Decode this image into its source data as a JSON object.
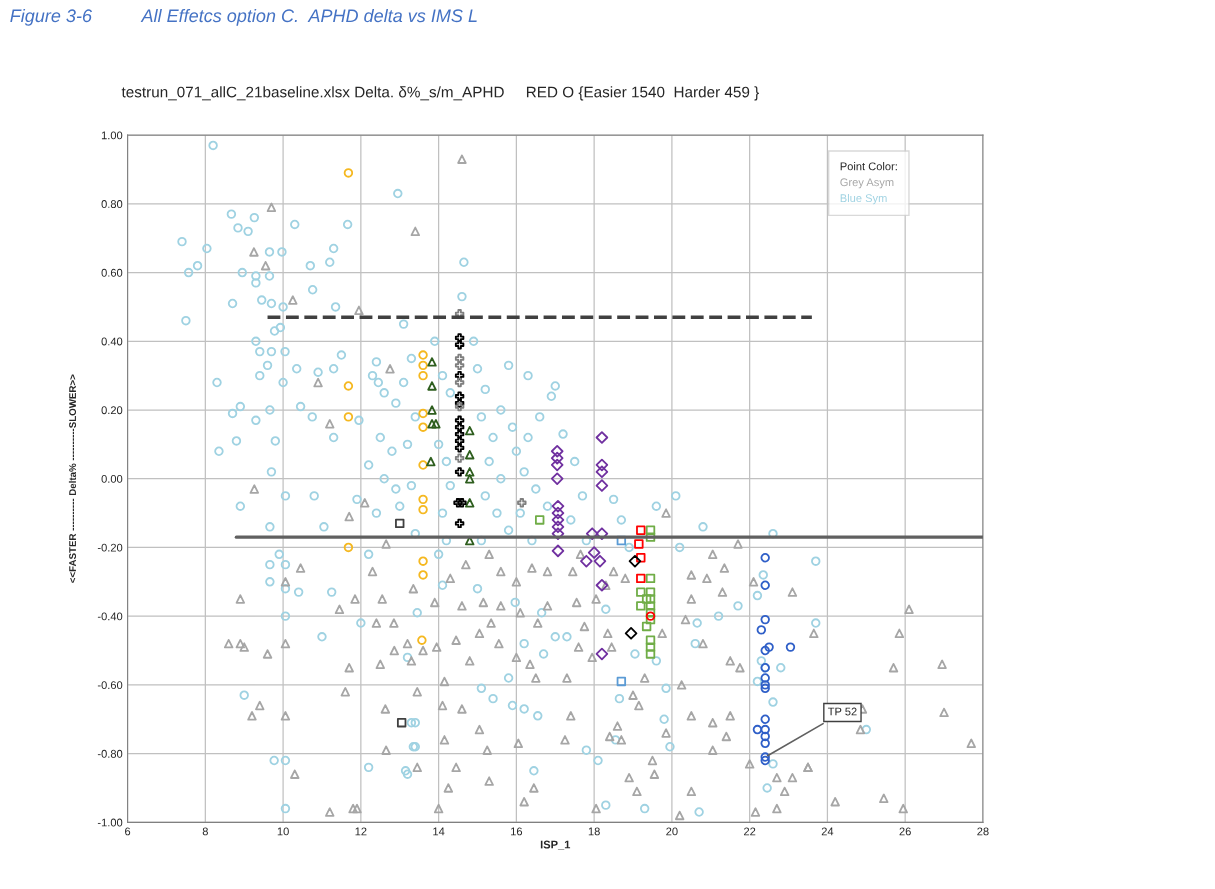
{
  "chart_data": {
    "type": "scatter",
    "title": "Figure 3-6          All Effetcs option C.  APHD delta vs IMS L",
    "subtitle": "testrun_071_allC_21baseline.xlsx Delta. δ%_s/m_APHD     RED O {Easier 1540  Harder 459 }",
    "xlabel": "ISP_1",
    "ylabel": "<<FASTER ---------- Delta% ----------SLOWER>>",
    "legend_title": "Point Color:",
    "legend": "top right",
    "grid": true,
    "xlim": [
      6,
      28
    ],
    "xticks": [
      6,
      8,
      10,
      12,
      14,
      16,
      18,
      20,
      22,
      24,
      26,
      28
    ],
    "ylim": [
      -1.0,
      1.0
    ],
    "yticks": [
      {
        "value": -1.0,
        "label": "-1.00"
      },
      {
        "value": -0.8,
        "label": "-0.80"
      },
      {
        "value": -0.6,
        "label": "-0.60"
      },
      {
        "value": -0.4,
        "label": "-0.40"
      },
      {
        "value": -0.2,
        "label": "-0.20"
      },
      {
        "value": 0.0,
        "label": "0.00"
      },
      {
        "value": 0.2,
        "label": "0.20"
      },
      {
        "value": 0.4,
        "label": "0.40"
      },
      {
        "value": 0.6,
        "label": "0.60"
      },
      {
        "value": 0.8,
        "label": "0.80"
      },
      {
        "value": 1.0,
        "label": "1.00"
      }
    ],
    "annotations": [
      {
        "text": "TP 52",
        "x": 22.4,
        "y": -0.81
      }
    ],
    "series": [
      {
        "name": "Blue Sym",
        "color": "#9fd2e2",
        "marker": "circle",
        "x": [
          8.2,
          12.95,
          7.4,
          8.04,
          7.57,
          7.8,
          8.67,
          8.84,
          9.1,
          9.26,
          9.65,
          9.97,
          10.3,
          11.66,
          11.3,
          11.2,
          10.7,
          8.95,
          9.3,
          9.65,
          9.3,
          10.76,
          8.7,
          9.45,
          9.7,
          10.0,
          11.35,
          7.5,
          9.93,
          9.78,
          9.3,
          9.4,
          9.7,
          10.05,
          9.6,
          9.4,
          8.3,
          10.0,
          10.35,
          10.9,
          11.3,
          11.5,
          8.9,
          8.7,
          9.3,
          9.66,
          8.8,
          9.8,
          8.35,
          10.45,
          10.75,
          11.3,
          11.95,
          9.7,
          12.45,
          12.4,
          13.1,
          8.9,
          10.06,
          10.8,
          9.66,
          11.05,
          9.9,
          9.66,
          10.06,
          9.66,
          10.06,
          10.4,
          11.25,
          10.06,
          11.0,
          12.0,
          9.0,
          9.77,
          10.06,
          12.2,
          10.06,
          13.15,
          13.35,
          13.3,
          13.2,
          13.45,
          12.2,
          11.9,
          20.8,
          22.6,
          22.35,
          22.2,
          21.7,
          21.2,
          20.6,
          20.65,
          22.8,
          22.6,
          22.4,
          19.8,
          19.95,
          22.6,
          22.45,
          20.7,
          19.3,
          18.3,
          16.45,
          18.1,
          17.8,
          18.55,
          16.55,
          16.2,
          15.9,
          15.4,
          15.1,
          15.8,
          13.4,
          13.2,
          13.4,
          18.65,
          16.7,
          16.2,
          17.3,
          17.0,
          18.3,
          16.65,
          15.97,
          15.0,
          14.1,
          19.05,
          19.6,
          19.85,
          22.2,
          22.3,
          23.7,
          23.7,
          25.0,
          12.3,
          12.6,
          12.9,
          13.1,
          13.3,
          12.5,
          12.8,
          13.2,
          13.4,
          12.2,
          12.6,
          12.9,
          13.3,
          13.0,
          12.4,
          13.4,
          13.9,
          14.1,
          14.3,
          14.0,
          14.2,
          14.3,
          14.1,
          14.2,
          14.0,
          15.0,
          15.2,
          15.1,
          15.4,
          15.3,
          15.6,
          15.2,
          15.5,
          15.8,
          15.1,
          15.6,
          15.9,
          16.0,
          16.3,
          16.6,
          16.9,
          16.2,
          16.5,
          16.8,
          16.1,
          16.4,
          17.2,
          17.5,
          17.7,
          17.4,
          17.8,
          18.5,
          18.7,
          18.9,
          19.6,
          20.1,
          20.2,
          17.0,
          16.3,
          15.8,
          14.9,
          14.6,
          14.65
        ],
        "values": [
          0.97,
          0.83,
          0.69,
          0.67,
          0.6,
          0.62,
          0.77,
          0.73,
          0.72,
          0.76,
          0.66,
          0.66,
          0.74,
          0.74,
          0.67,
          0.63,
          0.62,
          0.6,
          0.59,
          0.59,
          0.57,
          0.55,
          0.51,
          0.52,
          0.51,
          0.5,
          0.5,
          0.46,
          0.44,
          0.43,
          0.4,
          0.37,
          0.37,
          0.37,
          0.33,
          0.3,
          0.28,
          0.28,
          0.32,
          0.31,
          0.32,
          0.36,
          0.21,
          0.19,
          0.17,
          0.2,
          0.11,
          0.11,
          0.08,
          0.21,
          0.18,
          0.12,
          0.17,
          0.02,
          0.28,
          0.34,
          0.45,
          -0.08,
          -0.05,
          -0.05,
          -0.14,
          -0.14,
          -0.22,
          -0.25,
          -0.25,
          -0.3,
          -0.32,
          -0.33,
          -0.33,
          -0.4,
          -0.46,
          -0.42,
          -0.63,
          -0.82,
          -0.82,
          -0.84,
          -0.96,
          -0.85,
          -0.78,
          -0.71,
          -0.52,
          -0.39,
          -0.22,
          -0.06,
          -0.14,
          -0.16,
          -0.28,
          -0.34,
          -0.37,
          -0.4,
          -0.48,
          -0.42,
          -0.55,
          -0.65,
          -0.55,
          -0.7,
          -0.78,
          -0.83,
          -0.9,
          -0.97,
          -0.96,
          -0.95,
          -0.85,
          -0.82,
          -0.79,
          -0.76,
          -0.69,
          -0.67,
          -0.66,
          -0.64,
          -0.61,
          -0.58,
          -0.78,
          -0.86,
          -0.71,
          -0.64,
          -0.51,
          -0.48,
          -0.46,
          -0.46,
          -0.38,
          -0.39,
          -0.36,
          -0.32,
          -0.31,
          -0.51,
          -0.53,
          -0.61,
          -0.59,
          -0.53,
          -0.24,
          -0.42,
          -0.73,
          0.3,
          0.25,
          0.22,
          0.28,
          0.35,
          0.12,
          0.08,
          0.1,
          0.18,
          0.04,
          0.0,
          -0.03,
          -0.02,
          -0.08,
          -0.1,
          -0.16,
          0.4,
          0.3,
          0.25,
          0.1,
          0.05,
          -0.02,
          -0.1,
          -0.18,
          -0.22,
          0.32,
          0.26,
          0.18,
          0.12,
          0.05,
          0.0,
          -0.05,
          -0.1,
          -0.15,
          -0.18,
          0.2,
          0.15,
          0.08,
          0.12,
          0.18,
          0.24,
          0.02,
          -0.03,
          -0.08,
          -0.1,
          -0.18,
          0.13,
          0.05,
          -0.05,
          -0.12,
          -0.18,
          -0.06,
          -0.12,
          -0.2,
          -0.08,
          -0.05,
          -0.2,
          0.27,
          0.3,
          0.33,
          0.4,
          0.53,
          0.63
        ]
      },
      {
        "name": "Grey Asym",
        "color": "#a6a6a6",
        "marker": "triangle",
        "x": [
          9.7,
          9.25,
          9.55,
          10.25,
          11.95,
          10.9,
          11.2,
          13.4,
          12.75,
          14.6,
          9.26,
          8.6,
          8.9,
          9.0,
          9.6,
          10.06,
          8.9,
          10.45,
          10.06,
          11.45,
          11.7,
          12.5,
          11.6,
          9.4,
          9.2,
          10.06,
          10.3,
          11.2,
          11.8,
          11.9,
          12.65,
          12.63,
          12.86,
          13.2,
          13.3,
          12.85,
          12.4,
          12.3,
          11.85,
          12.55,
          12.65,
          11.7,
          12.1,
          20.5,
          21.05,
          21.7,
          22.1,
          21.35,
          21.3,
          23.1,
          20.35,
          20.8,
          21.5,
          21.75,
          20.25,
          20.5,
          21.05,
          21.5,
          21.4,
          21.05,
          22.0,
          22.7,
          23.1,
          22.9,
          22.7,
          22.15,
          23.5,
          20.5,
          20.2,
          19.55,
          19.1,
          18.05,
          18.9,
          19.5,
          19.85,
          18.7,
          18.4,
          18.6,
          19.0,
          19.15,
          17.3,
          17.95,
          17.6,
          16.5,
          16.0,
          15.55,
          14.8,
          15.05,
          15.35,
          14.45,
          13.95,
          13.6,
          14.15,
          13.45,
          14.1,
          14.6,
          15.05,
          15.25,
          14.15,
          13.45,
          14.45,
          14.25,
          15.3,
          16.45,
          16.2,
          14.0,
          16.05,
          17.25,
          17.4,
          16.35,
          16.55,
          17.75,
          18.35,
          18.45,
          19.3,
          19.75,
          19.85,
          20.9,
          20.5,
          14.3,
          14.7,
          15.3,
          15.6,
          16.0,
          16.4,
          16.8,
          17.45,
          17.65,
          18.5,
          18.8,
          18.3,
          18.05,
          17.55,
          16.8,
          16.1,
          15.6,
          15.15,
          14.6,
          13.9,
          13.35,
          26.1,
          25.85,
          23.65,
          25.7,
          26.95,
          24.9,
          27.0,
          24.85,
          27.7,
          23.5,
          24.2,
          25.45,
          25.95
        ],
        "values": [
          0.79,
          0.66,
          0.62,
          0.52,
          0.49,
          0.28,
          0.16,
          0.72,
          0.32,
          0.93,
          -0.03,
          -0.48,
          -0.48,
          -0.49,
          -0.51,
          -0.48,
          -0.35,
          -0.26,
          -0.3,
          -0.38,
          -0.55,
          -0.54,
          -0.62,
          -0.66,
          -0.69,
          -0.69,
          -0.86,
          -0.97,
          -0.96,
          -0.96,
          -0.79,
          -0.67,
          -0.5,
          -0.48,
          -0.53,
          -0.42,
          -0.42,
          -0.27,
          -0.35,
          -0.35,
          -0.19,
          -0.11,
          -0.07,
          -0.28,
          -0.22,
          -0.19,
          -0.3,
          -0.26,
          -0.33,
          -0.33,
          -0.41,
          -0.48,
          -0.53,
          -0.55,
          -0.6,
          -0.69,
          -0.71,
          -0.69,
          -0.75,
          -0.79,
          -0.83,
          -0.87,
          -0.87,
          -0.91,
          -0.96,
          -0.97,
          -0.84,
          -0.91,
          -0.98,
          -0.86,
          -0.91,
          -0.96,
          -0.87,
          -0.82,
          -0.74,
          -0.76,
          -0.75,
          -0.72,
          -0.63,
          -0.66,
          -0.58,
          -0.52,
          -0.49,
          -0.58,
          -0.52,
          -0.48,
          -0.53,
          -0.45,
          -0.42,
          -0.47,
          -0.49,
          -0.5,
          -0.59,
          -0.62,
          -0.66,
          -0.67,
          -0.73,
          -0.79,
          -0.76,
          -0.84,
          -0.84,
          -0.9,
          -0.88,
          -0.9,
          -0.94,
          -0.96,
          -0.77,
          -0.76,
          -0.69,
          -0.54,
          -0.42,
          -0.43,
          -0.45,
          -0.49,
          -0.58,
          -0.45,
          -0.1,
          -0.29,
          -0.35,
          -0.29,
          -0.25,
          -0.22,
          -0.27,
          -0.3,
          -0.26,
          -0.27,
          -0.27,
          -0.22,
          -0.27,
          -0.29,
          -0.31,
          -0.35,
          -0.36,
          -0.37,
          -0.39,
          -0.37,
          -0.36,
          -0.37,
          -0.36,
          -0.32,
          -0.38,
          -0.45,
          -0.45,
          -0.55,
          -0.54,
          -0.67,
          -0.68,
          -0.73,
          -0.77,
          -0.84,
          -0.94,
          -0.93,
          -0.96
        ]
      },
      {
        "color": "#f5b820",
        "marker": "circle",
        "x": [
          11.68,
          11.68,
          11.68,
          11.68,
          13.6,
          13.6,
          13.6,
          13.6,
          13.6,
          13.6,
          13.6,
          13.6,
          13.6,
          13.6,
          13.57
        ],
        "values": [
          0.89,
          0.27,
          0.18,
          -0.2,
          0.36,
          0.33,
          0.3,
          0.19,
          0.15,
          0.04,
          -0.06,
          -0.09,
          -0.24,
          -0.28,
          -0.47
        ]
      },
      {
        "color": "#2e5e1e",
        "marker": "triangle",
        "x": [
          13.83,
          13.83,
          13.83,
          13.83,
          13.93,
          13.8,
          14.8,
          14.8,
          14.8,
          14.8,
          14.8,
          14.8
        ],
        "values": [
          0.34,
          0.27,
          0.2,
          0.16,
          0.16,
          0.05,
          0.14,
          0.07,
          0.02,
          0.0,
          -0.07,
          -0.18
        ]
      },
      {
        "color": "#000000",
        "marker": "cross",
        "x": [
          14.54,
          14.54,
          14.54,
          14.54,
          14.54,
          14.54,
          14.54,
          14.54,
          14.54,
          14.54,
          14.54,
          14.5,
          14.6,
          14.54
        ],
        "values": [
          0.41,
          0.39,
          0.3,
          0.24,
          0.22,
          0.17,
          0.15,
          0.13,
          0.11,
          0.09,
          0.02,
          -0.07,
          -0.07,
          -0.13
        ]
      },
      {
        "color": "#7f7f7f",
        "marker": "cross",
        "x": [
          14.54,
          14.54,
          14.54,
          14.54,
          14.54,
          14.54,
          16.14
        ],
        "values": [
          0.48,
          0.35,
          0.33,
          0.28,
          0.21,
          0.06,
          -0.07
        ]
      },
      {
        "color": "#7030a0",
        "marker": "diamond",
        "x": [
          18.2,
          17.05,
          17.05,
          17.05,
          17.05,
          18.2,
          18.2,
          18.2,
          17.07,
          17.07,
          17.07,
          17.07,
          17.07,
          17.95,
          18.2,
          17.07,
          18.0,
          17.8,
          18.15,
          18.2,
          18.2
        ],
        "values": [
          0.12,
          0.08,
          0.06,
          0.04,
          0.0,
          0.04,
          0.02,
          -0.02,
          -0.08,
          -0.1,
          -0.12,
          -0.14,
          -0.16,
          -0.16,
          -0.16,
          -0.21,
          -0.215,
          -0.24,
          -0.24,
          -0.31,
          -0.51
        ]
      },
      {
        "color": "#70ad47",
        "marker": "square",
        "x": [
          16.6,
          19.45,
          19.45,
          19.45,
          19.45,
          19.45,
          19.45,
          19.45,
          19.45,
          19.45,
          19.45,
          19.45,
          19.2,
          19.2,
          19.35,
          19.35
        ],
        "values": [
          -0.12,
          -0.15,
          -0.17,
          -0.29,
          -0.33,
          -0.35,
          -0.37,
          -0.39,
          -0.41,
          -0.47,
          -0.49,
          -0.51,
          -0.33,
          -0.37,
          -0.35,
          -0.43
        ]
      },
      {
        "color": "#ff0000",
        "marker": "square",
        "x": [
          19.2,
          19.15,
          19.2,
          19.2
        ],
        "values": [
          -0.15,
          -0.19,
          -0.23,
          -0.29
        ]
      },
      {
        "color": "#ff0000",
        "marker": "circle",
        "x": [
          19.45
        ],
        "values": [
          -0.4
        ]
      },
      {
        "color": "#000000",
        "marker": "diamond",
        "x": [
          19.05,
          18.95
        ],
        "values": [
          -0.24,
          -0.45
        ]
      },
      {
        "color": "#5b9bd5",
        "marker": "square",
        "x": [
          18.7,
          18.7
        ],
        "values": [
          -0.18,
          -0.59
        ]
      },
      {
        "color": "#404040",
        "marker": "square",
        "x": [
          13.0,
          13.05
        ],
        "values": [
          -0.13,
          -0.71
        ]
      },
      {
        "color": "#2f5fc8",
        "marker": "circle",
        "x": [
          22.4,
          22.4,
          22.4,
          22.3,
          22.4,
          22.5,
          23.05,
          22.4,
          22.4,
          22.4,
          22.4,
          22.4,
          22.2,
          22.4,
          22.4,
          22.4,
          22.4,
          22.4
        ],
        "values": [
          -0.23,
          -0.31,
          -0.41,
          -0.44,
          -0.5,
          -0.49,
          -0.49,
          -0.55,
          -0.58,
          -0.6,
          -0.61,
          -0.7,
          -0.73,
          -0.73,
          -0.75,
          -0.77,
          -0.81,
          -0.82
        ]
      },
      {
        "type": "line",
        "color": "#404040",
        "marker": "none",
        "line_style": "dashed",
        "x": [
          9.6,
          23.6
        ],
        "values": [
          0.47,
          0.47
        ]
      },
      {
        "type": "line",
        "color": "#606060",
        "marker": "none",
        "line_style": "solid",
        "x": [
          8.8,
          28
        ],
        "values": [
          -0.17,
          -0.17
        ]
      }
    ]
  }
}
